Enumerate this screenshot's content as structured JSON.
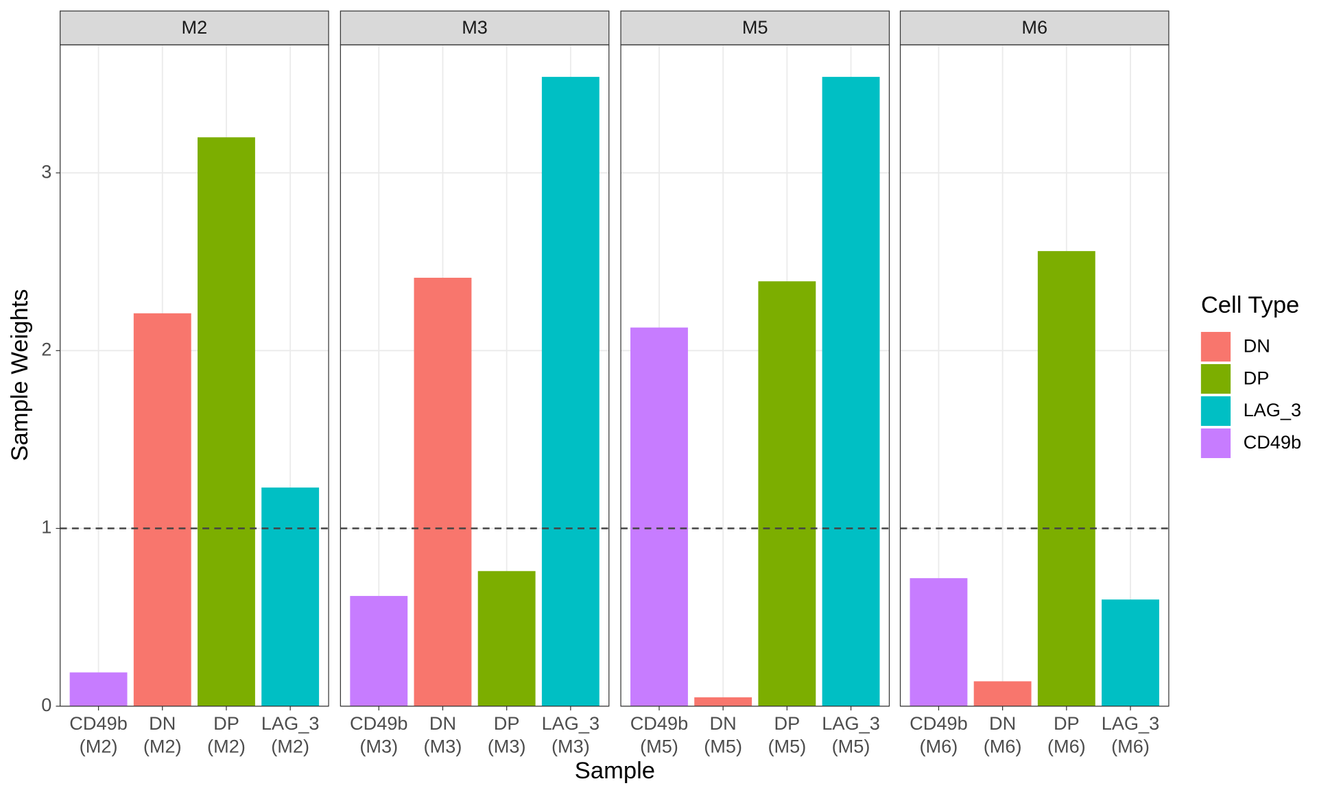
{
  "chart_data": [
    {
      "type": "bar",
      "title": "M2",
      "categories": [
        "CD49b\n(M2)",
        "DN\n(M2)",
        "DP\n(M2)",
        "LAG_3\n(M2)"
      ],
      "values": [
        0.19,
        2.21,
        3.2,
        1.23
      ],
      "colors": [
        "#C77CFF",
        "#F8766D",
        "#7CAE00",
        "#00BFC4"
      ],
      "ylim": [
        0,
        3.72
      ],
      "yticks": [
        0,
        1,
        2,
        3
      ],
      "grid": true
    },
    {
      "type": "bar",
      "title": "M3",
      "categories": [
        "CD49b\n(M3)",
        "DN\n(M3)",
        "DP\n(M3)",
        "LAG_3\n(M3)"
      ],
      "values": [
        0.62,
        2.41,
        0.76,
        3.54
      ],
      "colors": [
        "#C77CFF",
        "#F8766D",
        "#7CAE00",
        "#00BFC4"
      ],
      "ylim": [
        0,
        3.72
      ],
      "yticks": [
        0,
        1,
        2,
        3
      ],
      "grid": true
    },
    {
      "type": "bar",
      "title": "M5",
      "categories": [
        "CD49b\n(M5)",
        "DN\n(M5)",
        "DP\n(M5)",
        "LAG_3\n(M5)"
      ],
      "values": [
        2.13,
        0.05,
        2.39,
        3.54
      ],
      "colors": [
        "#C77CFF",
        "#F8766D",
        "#7CAE00",
        "#00BFC4"
      ],
      "ylim": [
        0,
        3.72
      ],
      "yticks": [
        0,
        1,
        2,
        3
      ],
      "grid": true
    },
    {
      "type": "bar",
      "title": "M6",
      "categories": [
        "CD49b\n(M6)",
        "DN\n(M6)",
        "DP\n(M6)",
        "LAG_3\n(M6)"
      ],
      "values": [
        0.72,
        0.14,
        2.56,
        0.6
      ],
      "colors": [
        "#C77CFF",
        "#F8766D",
        "#7CAE00",
        "#00BFC4"
      ],
      "ylim": [
        0,
        3.72
      ],
      "yticks": [
        0,
        1,
        2,
        3
      ],
      "grid": true
    }
  ],
  "xlabel": "Sample",
  "ylabel": "Sample Weights",
  "hline": 1,
  "legend": {
    "title": "Cell Type",
    "entries": [
      {
        "name": "DN",
        "color": "#F8766D"
      },
      {
        "name": "DP",
        "color": "#7CAE00"
      },
      {
        "name": "LAG_3",
        "color": "#00BFC4"
      },
      {
        "name": "CD49b",
        "color": "#C77CFF"
      }
    ]
  }
}
